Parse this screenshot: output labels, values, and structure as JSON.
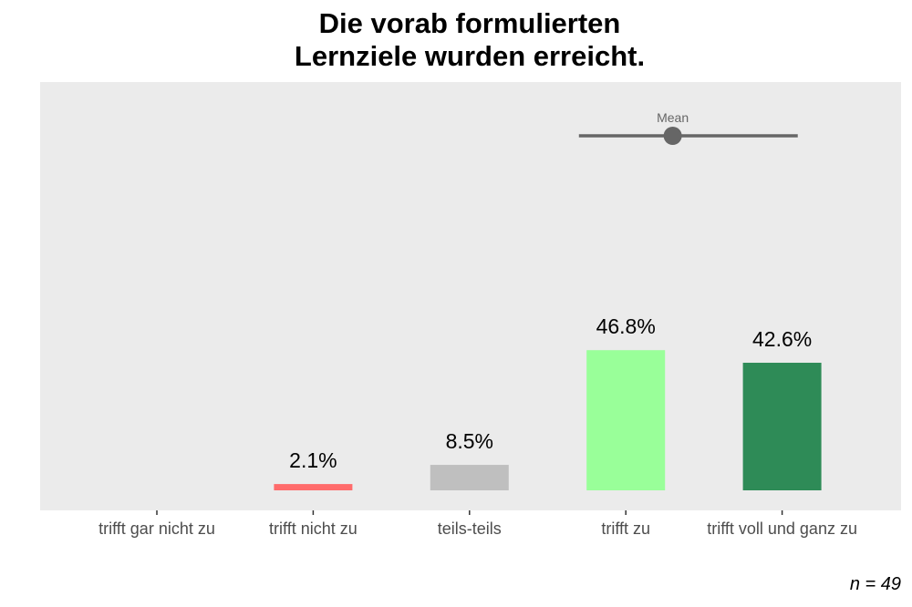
{
  "chart_data": {
    "type": "bar",
    "title_lines": [
      "Die vorab formulierten",
      "Lernziele wurden erreicht."
    ],
    "categories": [
      "trifft gar nicht zu",
      "trifft nicht zu",
      "teils-teils",
      "trifft zu",
      "trifft voll und ganz zu"
    ],
    "values": [
      0,
      2.1,
      8.5,
      46.8,
      42.6
    ],
    "value_labels": [
      "",
      "2.1%",
      "8.5%",
      "46.8%",
      "42.6%"
    ],
    "colors": [
      "#d7191c",
      "#ff6b6b",
      "#bfbfbf",
      "#99ff99",
      "#2e8b57"
    ],
    "ylim": [
      0,
      100
    ],
    "unit": "%",
    "grid": false,
    "panel_background": "#ebebeb",
    "mean": {
      "label": "Mean",
      "position": 4.3,
      "range_low": 3.7,
      "range_high": 5.1,
      "color": "#666666"
    }
  },
  "footnote": "n = 49"
}
